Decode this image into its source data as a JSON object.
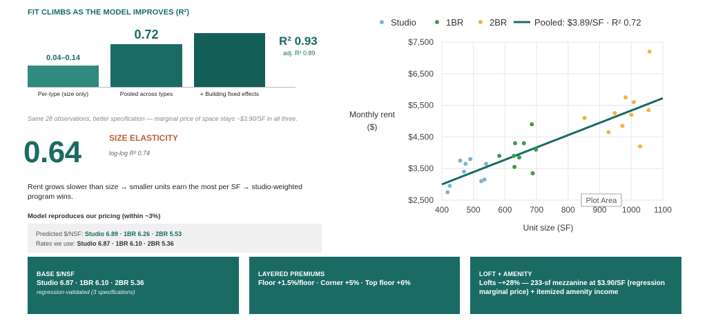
{
  "fit_panel": {
    "title": "FIT CLIMBS AS THE MODEL IMPROVES  (R²)",
    "bars": [
      {
        "value_label": "0.04–0.14",
        "label": "Per-type (size only)",
        "r2": 0.14,
        "color": "#2f8a7f"
      },
      {
        "value_label": "0.72",
        "label": "Pooled across types",
        "r2": 0.72,
        "color": "#1a6b64"
      },
      {
        "value_label": "",
        "label": "+ Building fixed effects",
        "r2": 0.93,
        "color": "#145e58"
      }
    ],
    "r2_big": "R² 0.93",
    "r2_adj": "adj. R² 0.89"
  },
  "note": "Same 28 observations, better specification — marginal price of space stays ~$3.90/SF in all three.",
  "elasticity": {
    "value": "0.64",
    "label": "SIZE ELASTICITY",
    "sub": "log-log R² 0.74"
  },
  "rent_text": "Rent grows slower than size → smaller units earn the most per SF → studio-weighted program wins.",
  "repro": {
    "title": "Model reproduces our pricing (within ~3%)",
    "predicted_label": "Predicted $/NSF:",
    "predicted_value": "Studio 6.89 · 1BR 6.26 · 2BR 5.53",
    "rates_label": "Rates we use:",
    "rates_value": "Studio 6.87 · 1BR 6.10 · 2BR 5.36"
  },
  "chart_data": {
    "type": "scatter",
    "xlabel": "Unit size (SF)",
    "ylabel": "Monthly rent ($)",
    "xlim": [
      400,
      1100
    ],
    "ylim": [
      2500,
      7500
    ],
    "x_ticks": [
      "400",
      "500",
      "600",
      "700",
      "800",
      "900",
      "1000",
      "1100"
    ],
    "y_ticks": [
      "$2,500",
      "$3,500",
      "$4,500",
      "$5,500",
      "$6,500",
      "$7,500"
    ],
    "grid": true,
    "legend_position": "top",
    "tooltip": "Plot Area",
    "series": [
      {
        "name": "Studio",
        "color": "#7eb2d6",
        "points": [
          [
            418,
            2750
          ],
          [
            425,
            2950
          ],
          [
            458,
            3750
          ],
          [
            470,
            3400
          ],
          [
            475,
            3650
          ],
          [
            490,
            3800
          ],
          [
            525,
            3100
          ],
          [
            535,
            3150
          ],
          [
            540,
            3650
          ]
        ]
      },
      {
        "name": "1BR",
        "color": "#3d9a4f",
        "points": [
          [
            582,
            3900
          ],
          [
            628,
            3900
          ],
          [
            630,
            3550
          ],
          [
            632,
            4300
          ],
          [
            645,
            3850
          ],
          [
            660,
            4300
          ],
          [
            685,
            4900
          ],
          [
            688,
            3350
          ],
          [
            698,
            4100
          ]
        ]
      },
      {
        "name": "2BR",
        "color": "#e8b840",
        "points": [
          [
            852,
            5100
          ],
          [
            928,
            4650
          ],
          [
            948,
            5250
          ],
          [
            972,
            4850
          ],
          [
            982,
            5750
          ],
          [
            1000,
            5200
          ],
          [
            1008,
            5600
          ],
          [
            1028,
            4200
          ],
          [
            1055,
            5350
          ],
          [
            1058,
            7200
          ]
        ]
      }
    ],
    "fit_line": {
      "name": "Pooled: $3.89/SF · R² 0.72",
      "color": "#1a6b64",
      "x": [
        400,
        1100
      ],
      "y": [
        3000,
        5725
      ]
    }
  },
  "cards": [
    {
      "title": "BASE $/NSF",
      "body": "Studio 6.87 · 1BR 6.10 · 2BR 5.36",
      "sub": "regression-validated (3 specifications)"
    },
    {
      "title": "LAYERED PREMIUMS",
      "body": "Floor +1.5%/floor · Corner +5% · Top floor +6%",
      "sub": ""
    },
    {
      "title": "LOFT + AMENITY",
      "body": "Lofts ~+28% — 233-sf mezzanine at $3.90/SF (regression marginal price) + itemized amenity income",
      "sub": ""
    }
  ]
}
